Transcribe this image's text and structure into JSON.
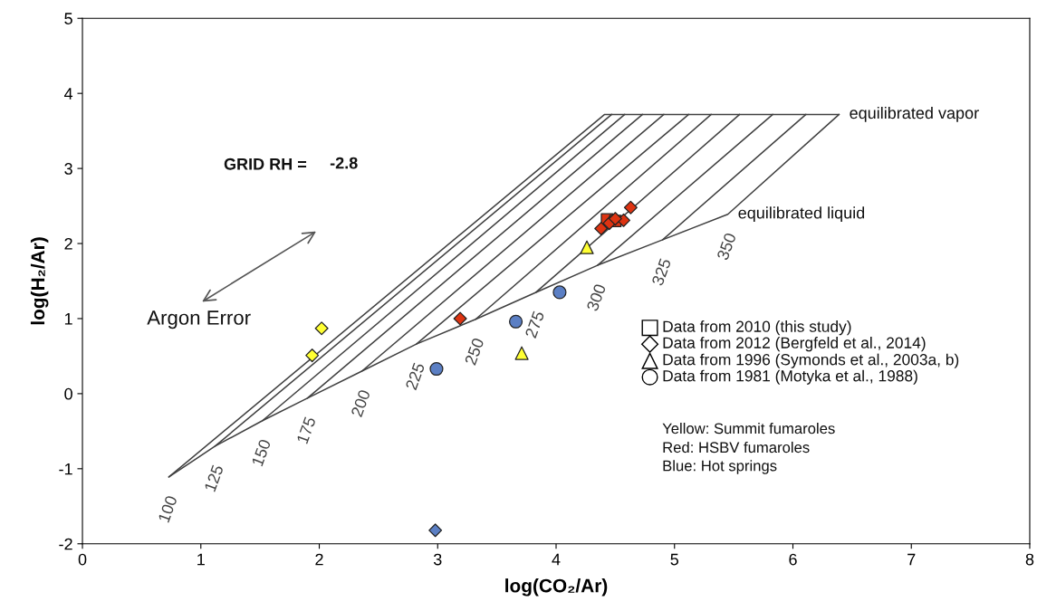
{
  "chart_data": {
    "type": "scatter",
    "xlabel": "log(CO₂/Ar)",
    "ylabel": "log(H₂/Ar)",
    "xlim": [
      0,
      8
    ],
    "ylim": [
      -2,
      5
    ],
    "xticks": [
      0,
      1,
      2,
      3,
      4,
      5,
      6,
      7,
      8
    ],
    "yticks": [
      -2,
      -1,
      0,
      1,
      2,
      3,
      4,
      5
    ],
    "grid": false,
    "series": [
      {
        "type": "line",
        "color": "#404040",
        "marker": "none",
        "x": [
          0.73,
          1.12,
          1.52,
          1.9,
          2.36,
          2.82,
          3.32,
          3.83,
          4.35,
          4.9,
          5.45,
          6.39
        ],
        "values": [
          -1.11,
          -0.7,
          -0.36,
          -0.06,
          0.3,
          0.66,
          0.99,
          1.35,
          1.71,
          2.05,
          2.39,
          3.72
        ]
      },
      {
        "type": "line",
        "color": "#404040",
        "marker": "none",
        "x": [
          0.73,
          4.41,
          6.39
        ],
        "values": [
          -1.11,
          3.72,
          3.72
        ]
      },
      {
        "type": "line",
        "color": "#404040",
        "marker": "none",
        "x": [
          1.12,
          4.47
        ],
        "values": [
          -0.7,
          3.72
        ]
      },
      {
        "type": "line",
        "color": "#404040",
        "marker": "none",
        "x": [
          1.52,
          4.58
        ],
        "values": [
          -0.36,
          3.72
        ]
      },
      {
        "type": "line",
        "color": "#404040",
        "marker": "none",
        "x": [
          1.9,
          4.73
        ],
        "values": [
          -0.06,
          3.72
        ]
      },
      {
        "type": "line",
        "color": "#404040",
        "marker": "none",
        "x": [
          2.36,
          4.91
        ],
        "values": [
          0.3,
          3.72
        ]
      },
      {
        "type": "line",
        "color": "#404040",
        "marker": "none",
        "x": [
          2.82,
          5.12
        ],
        "values": [
          0.66,
          3.72
        ]
      },
      {
        "type": "line",
        "color": "#404040",
        "marker": "none",
        "x": [
          3.32,
          5.31
        ],
        "values": [
          0.99,
          3.72
        ]
      },
      {
        "type": "line",
        "color": "#404040",
        "marker": "none",
        "x": [
          3.83,
          5.55
        ],
        "values": [
          1.35,
          3.72
        ]
      },
      {
        "type": "line",
        "color": "#404040",
        "marker": "none",
        "x": [
          4.35,
          5.83
        ],
        "values": [
          1.71,
          3.72
        ]
      },
      {
        "type": "line",
        "color": "#404040",
        "marker": "none",
        "x": [
          4.9,
          6.11
        ],
        "values": [
          2.05,
          3.72
        ]
      },
      {
        "marker": "square",
        "x": [
          4.43,
          4.5
        ],
        "values": [
          2.32,
          2.3
        ],
        "colors": [
          "#dd3311",
          "#dd3311"
        ]
      },
      {
        "marker": "diamond",
        "x": [
          2.02,
          1.94,
          2.98,
          3.19,
          4.63,
          4.38,
          4.45,
          4.57,
          4.5
        ],
        "values": [
          0.87,
          0.51,
          -1.82,
          1.0,
          2.48,
          2.2,
          2.27,
          2.31,
          2.33
        ],
        "colors": [
          "#ffff33",
          "#ffff33",
          "#5b7fc4",
          "#dd3311",
          "#dd3311",
          "#dd3311",
          "#dd3311",
          "#dd3311",
          "#dd3311"
        ]
      },
      {
        "marker": "triangle",
        "x": [
          4.26,
          3.71
        ],
        "values": [
          1.95,
          0.54
        ],
        "colors": [
          "#ffff33",
          "#ffff33"
        ]
      },
      {
        "marker": "circle",
        "x": [
          2.99,
          3.66,
          4.03
        ],
        "values": [
          0.33,
          0.96,
          1.35
        ],
        "colors": [
          "#5b7fc4",
          "#5b7fc4",
          "#5b7fc4"
        ]
      }
    ],
    "annotations": [
      "GRID RH =",
      "-2.8",
      "Argon Error",
      "Yellow: Summit fumaroles",
      "Red: HSBV fumaroles",
      "Blue: Hot springs",
      "Data from 2010 (this study)",
      "Data from 2012 (Bergfeld et al., 2014)",
      "Data from 1996 (Symonds et al., 2003a, b)",
      "Data from 1981 (Motyka et al., 1988)",
      {
        "text": "equilibrated vapor",
        "x": 6.39,
        "y": 3.72
      },
      {
        "text": "equilibrated liquid",
        "x": 5.45,
        "y": 2.39
      },
      {
        "text": "100",
        "x": 0.73,
        "y": -1.11
      },
      {
        "text": "125",
        "x": 1.12,
        "y": -0.7
      },
      {
        "text": "150",
        "x": 1.52,
        "y": -0.36
      },
      {
        "text": "175",
        "x": 1.9,
        "y": -0.06
      },
      {
        "text": "200",
        "x": 2.36,
        "y": 0.3
      },
      {
        "text": "225",
        "x": 2.82,
        "y": 0.66
      },
      {
        "text": "250",
        "x": 3.32,
        "y": 0.99
      },
      {
        "text": "275",
        "x": 3.83,
        "y": 1.35
      },
      {
        "text": "300",
        "x": 4.35,
        "y": 1.71
      },
      {
        "text": "325",
        "x": 4.9,
        "y": 2.05
      },
      {
        "text": "350",
        "x": 5.45,
        "y": 2.39
      }
    ]
  }
}
